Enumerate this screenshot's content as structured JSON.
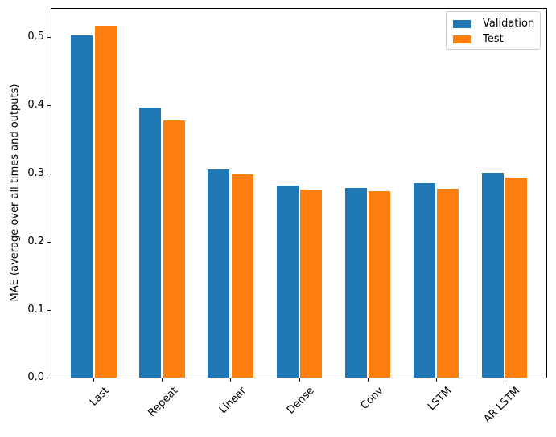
{
  "chart_data": {
    "type": "bar",
    "title": "",
    "xlabel": "",
    "ylabel": "MAE (average over all times and outputs)",
    "categories": [
      "Last",
      "Repeat",
      "Linear",
      "Dense",
      "Conv",
      "LSTM",
      "AR LSTM"
    ],
    "series": [
      {
        "name": "Validation",
        "color": "#1f77b4",
        "values": [
          0.502,
          0.396,
          0.306,
          0.282,
          0.279,
          0.286,
          0.301
        ]
      },
      {
        "name": "Test",
        "color": "#ff7f0e",
        "values": [
          0.516,
          0.377,
          0.299,
          0.276,
          0.274,
          0.278,
          0.294
        ]
      }
    ],
    "ylim": [
      0,
      0.542
    ],
    "yticks": [
      0.0,
      0.1,
      0.2,
      0.3,
      0.4,
      0.5
    ],
    "ytick_labels": [
      "0.0",
      "0.1",
      "0.2",
      "0.3",
      "0.4",
      "0.5"
    ],
    "xtick_rotation": 45,
    "grid": false,
    "legend": {
      "position": "upper right",
      "entries": [
        "Validation",
        "Test"
      ]
    }
  }
}
